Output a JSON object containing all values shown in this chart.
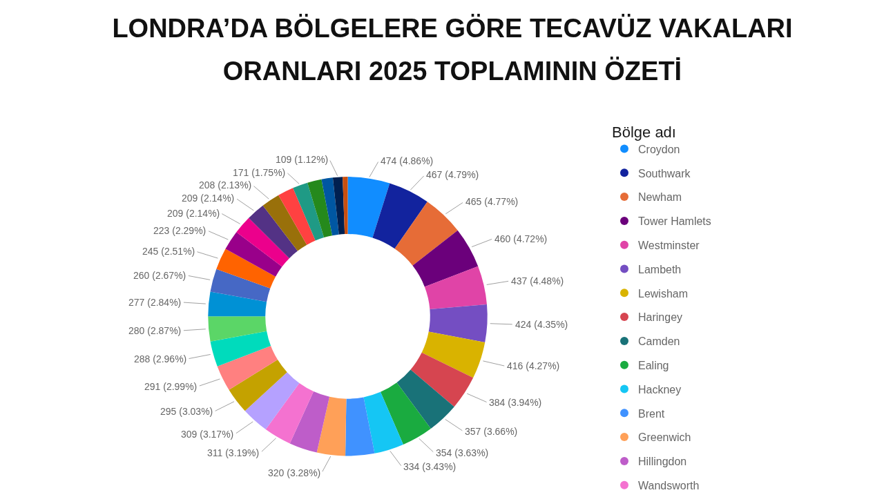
{
  "chart_data": {
    "type": "donut",
    "title": "LONDRA’DA BÖLGELERE GÖRE TECAVÜZ VAKALARI ORANLARI 2025 TOPLAMININ ÖZETİ",
    "legend_title": "Bölge adı",
    "legend": "right",
    "categories": [
      "Croydon",
      "Southwark",
      "Newham",
      "Tower Hamlets",
      "Westminster",
      "Lambeth",
      "Lewisham",
      "Haringey",
      "Camden",
      "Ealing",
      "Hackney",
      "Brent",
      "Greenwich",
      "Hillingdon",
      "Wandsworth",
      null,
      null,
      null,
      null,
      null,
      null,
      null,
      null,
      null,
      null,
      null,
      null,
      null,
      null,
      null,
      null,
      null,
      null
    ],
    "values": [
      474,
      467,
      465,
      460,
      437,
      424,
      416,
      384,
      357,
      354,
      334,
      327,
      320,
      316,
      311,
      309,
      295,
      291,
      288,
      280,
      277,
      260,
      245,
      223,
      209,
      209,
      208,
      180,
      171,
      160,
      128,
      109,
      57
    ],
    "colors": [
      "#118dff",
      "#12239e",
      "#e66c37",
      "#6b007b",
      "#e044a7",
      "#744ec2",
      "#d9b300",
      "#d64550",
      "#197278",
      "#1aab40",
      "#15c6f4",
      "#4092ff",
      "#ffa058",
      "#be5dc9",
      "#f472d0",
      "#b5a1ff",
      "#c4a200",
      "#ff8080",
      "#00dbbc",
      "#5bd667",
      "#0091d5",
      "#4668c5",
      "#ff6300",
      "#99008a",
      "#ec008c",
      "#533285",
      "#99700a",
      "#ff4141",
      "#1f9a85",
      "#25891c",
      "#0057a2",
      "#002050",
      "#c94f0f"
    ],
    "value_labels": [
      "474 (4.86%)",
      "467 (4.79%)",
      "465 (4.77%)",
      "460 (4.72%)",
      "437 (4.48%)",
      "424 (4.35%)",
      "416 (4.27%)",
      "384 (3.94%)",
      "357 (3.66%)",
      "354 (3.63%)",
      "334 (3.43%)",
      null,
      "320 (3.28%)",
      null,
      "311 (3.19%)",
      "309 (3.17%)",
      "295 (3.03%)",
      "291 (2.99%)",
      "288 (2.96%)",
      "280 (2.87%)",
      "277 (2.84%)",
      "260 (2.67%)",
      "245 (2.51%)",
      "223 (2.29%)",
      "209 (2.14%)",
      "209 (2.14%)",
      "208 (2.13%)",
      null,
      "171 (1.75%)",
      null,
      null,
      "109 (1.12%)",
      null
    ]
  }
}
